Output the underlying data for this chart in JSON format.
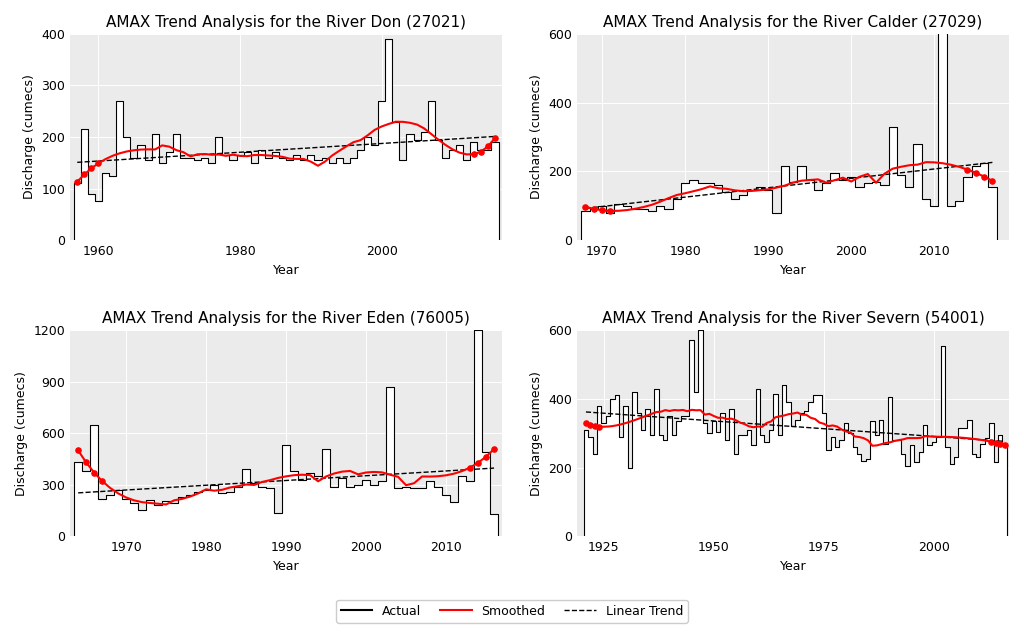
{
  "subplots": [
    {
      "title": "AMAX Trend Analysis for the River Don (27021)",
      "years": [
        1957,
        1958,
        1959,
        1960,
        1961,
        1962,
        1963,
        1964,
        1965,
        1966,
        1967,
        1968,
        1969,
        1970,
        1971,
        1972,
        1973,
        1974,
        1975,
        1976,
        1977,
        1978,
        1979,
        1980,
        1981,
        1982,
        1983,
        1984,
        1985,
        1986,
        1987,
        1988,
        1989,
        1990,
        1991,
        1992,
        1993,
        1994,
        1995,
        1996,
        1997,
        1998,
        1999,
        2000,
        2001,
        2002,
        2003,
        2004,
        2005,
        2006,
        2007,
        2008,
        2009,
        2010,
        2011,
        2012,
        2013,
        2014,
        2015,
        2016
      ],
      "values": [
        110,
        215,
        90,
        75,
        130,
        125,
        270,
        200,
        160,
        185,
        155,
        205,
        150,
        170,
        205,
        160,
        160,
        155,
        160,
        150,
        200,
        165,
        155,
        165,
        170,
        150,
        175,
        160,
        170,
        160,
        155,
        165,
        155,
        165,
        155,
        160,
        150,
        160,
        150,
        160,
        175,
        200,
        185,
        270,
        390,
        230,
        155,
        205,
        195,
        210,
        270,
        195,
        160,
        175,
        185,
        155,
        190,
        175,
        175,
        190
      ],
      "ylim": [
        0,
        400
      ],
      "yticks": [
        0,
        100,
        200,
        300,
        400
      ],
      "xlim": [
        1956,
        2017
      ],
      "xticks": [
        1960,
        1980,
        2000
      ]
    },
    {
      "title": "AMAX Trend Analysis for the River Calder (27029)",
      "years": [
        1968,
        1969,
        1970,
        1971,
        1972,
        1973,
        1974,
        1975,
        1976,
        1977,
        1978,
        1979,
        1980,
        1981,
        1982,
        1983,
        1984,
        1985,
        1986,
        1987,
        1988,
        1989,
        1990,
        1991,
        1992,
        1993,
        1994,
        1995,
        1996,
        1997,
        1998,
        1999,
        2000,
        2001,
        2002,
        2003,
        2004,
        2005,
        2006,
        2007,
        2008,
        2009,
        2010,
        2011,
        2012,
        2013,
        2014,
        2015,
        2016,
        2017
      ],
      "values": [
        85,
        90,
        100,
        80,
        105,
        100,
        90,
        90,
        85,
        100,
        90,
        120,
        165,
        175,
        165,
        165,
        160,
        140,
        120,
        130,
        145,
        155,
        145,
        80,
        215,
        170,
        215,
        175,
        145,
        165,
        195,
        175,
        185,
        155,
        165,
        170,
        160,
        330,
        190,
        155,
        280,
        120,
        100,
        620,
        100,
        115,
        185,
        215,
        225,
        155
      ],
      "ylim": [
        0,
        600
      ],
      "yticks": [
        0,
        200,
        400,
        600
      ],
      "xlim": [
        1967,
        2019
      ],
      "xticks": [
        1970,
        1980,
        1990,
        2000,
        2010
      ]
    },
    {
      "title": "AMAX Trend Analysis for the River Eden (76005)",
      "years": [
        1964,
        1965,
        1966,
        1967,
        1968,
        1969,
        1970,
        1971,
        1972,
        1973,
        1974,
        1975,
        1976,
        1977,
        1978,
        1979,
        1980,
        1981,
        1982,
        1983,
        1984,
        1985,
        1986,
        1987,
        1988,
        1989,
        1990,
        1991,
        1992,
        1993,
        1994,
        1995,
        1996,
        1997,
        1998,
        1999,
        2000,
        2001,
        2002,
        2003,
        2004,
        2005,
        2006,
        2007,
        2008,
        2009,
        2010,
        2011,
        2012,
        2013,
        2014,
        2015,
        2016
      ],
      "values": [
        430,
        380,
        650,
        220,
        240,
        270,
        215,
        195,
        155,
        210,
        185,
        205,
        195,
        230,
        240,
        260,
        270,
        300,
        250,
        260,
        290,
        390,
        310,
        290,
        280,
        135,
        530,
        380,
        330,
        370,
        350,
        510,
        290,
        340,
        290,
        300,
        330,
        300,
        320,
        870,
        280,
        290,
        280,
        280,
        320,
        290,
        240,
        200,
        350,
        320,
        1200,
        490,
        130
      ],
      "ylim": [
        0,
        1200
      ],
      "yticks": [
        0,
        300,
        600,
        900,
        1200
      ],
      "xlim": [
        1963,
        2017
      ],
      "xticks": [
        1970,
        1980,
        1990,
        2000,
        2010
      ]
    },
    {
      "title": "AMAX Trend Analysis for the River Severn (54001)",
      "years": [
        1921,
        1922,
        1923,
        1924,
        1925,
        1926,
        1927,
        1928,
        1929,
        1930,
        1931,
        1932,
        1933,
        1934,
        1935,
        1936,
        1937,
        1938,
        1939,
        1940,
        1941,
        1942,
        1943,
        1944,
        1945,
        1946,
        1947,
        1948,
        1949,
        1950,
        1951,
        1952,
        1953,
        1954,
        1955,
        1956,
        1957,
        1958,
        1959,
        1960,
        1961,
        1962,
        1963,
        1964,
        1965,
        1966,
        1967,
        1968,
        1969,
        1970,
        1971,
        1972,
        1973,
        1974,
        1975,
        1976,
        1977,
        1978,
        1979,
        1980,
        1981,
        1982,
        1983,
        1984,
        1985,
        1986,
        1987,
        1988,
        1989,
        1990,
        1991,
        1992,
        1993,
        1994,
        1995,
        1996,
        1997,
        1998,
        1999,
        2000,
        2001,
        2002,
        2003,
        2004,
        2005,
        2006,
        2007,
        2008,
        2009,
        2010,
        2011,
        2012,
        2013,
        2014,
        2015,
        2016
      ],
      "values": [
        310,
        290,
        240,
        380,
        330,
        350,
        400,
        410,
        290,
        380,
        200,
        420,
        360,
        310,
        370,
        295,
        430,
        295,
        280,
        350,
        295,
        335,
        350,
        350,
        570,
        420,
        600,
        330,
        300,
        335,
        305,
        360,
        280,
        370,
        240,
        295,
        295,
        310,
        265,
        430,
        295,
        275,
        310,
        415,
        295,
        440,
        390,
        320,
        340,
        360,
        365,
        390,
        410,
        410,
        360,
        250,
        290,
        260,
        280,
        330,
        300,
        260,
        240,
        220,
        225,
        335,
        295,
        340,
        270,
        405,
        280,
        280,
        240,
        205,
        265,
        215,
        245,
        325,
        265,
        275,
        290,
        555,
        260,
        210,
        230,
        315,
        315,
        340,
        240,
        230,
        270,
        285,
        330,
        215,
        295,
        265
      ],
      "ylim": [
        0,
        600
      ],
      "yticks": [
        0,
        200,
        400,
        600
      ],
      "xlim": [
        1919,
        2017
      ],
      "xticks": [
        1925,
        1950,
        1975,
        2000
      ]
    }
  ],
  "bg_color": "#ebebeb",
  "smooth_color": "#FF0000",
  "trend_color": "black",
  "ylabel": "Discharge (cumecs)",
  "xlabel": "Year",
  "title_fontsize": 11,
  "axis_fontsize": 9,
  "legend_fontsize": 9,
  "smooth_dots_n": 4
}
